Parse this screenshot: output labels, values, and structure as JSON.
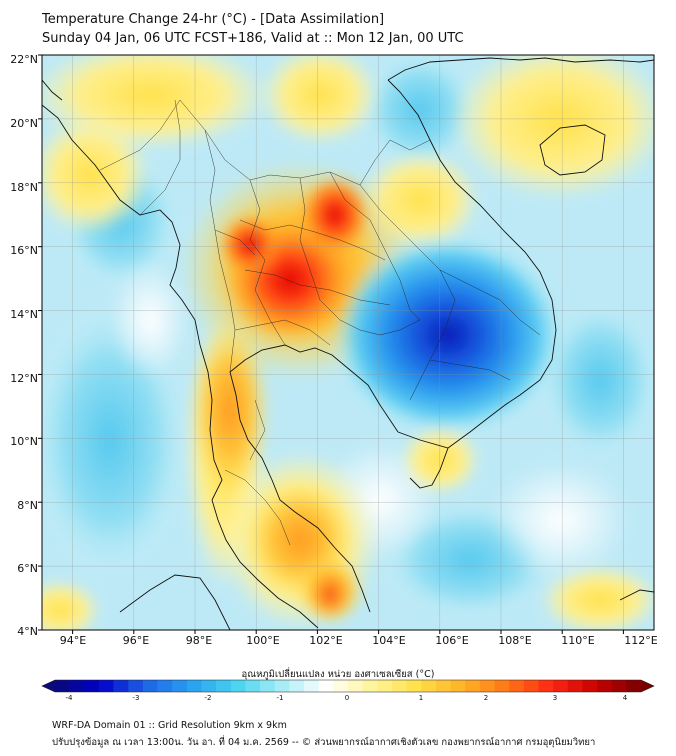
{
  "title": {
    "line1": "Temperature Change 24-hr (°C) - [Data Assimilation]",
    "line2": "Sunday 04 Jan, 06 UTC FCST+186, Valid at :: Mon 12 Jan, 00 UTC"
  },
  "map": {
    "lat_range_deg": [
      4,
      22
    ],
    "lon_range_deg": [
      93,
      113
    ],
    "lat_labels": [
      "22°N",
      "20°N",
      "18°N",
      "16°N",
      "14°N",
      "12°N",
      "10°N",
      "8°N",
      "6°N",
      "4°N"
    ],
    "lon_labels": [
      "94°E",
      "96°E",
      "98°E",
      "100°E",
      "102°E",
      "104°E",
      "106°E",
      "108°E",
      "110°E",
      "112°E"
    ],
    "features": [
      {
        "name": "warm-core-central-thailand",
        "value_c": 3.0,
        "lon": 100.5,
        "lat": 15.0
      },
      {
        "name": "cold-core-cambodia",
        "value_c": -3.5,
        "lon": 105.8,
        "lat": 13.6
      },
      {
        "name": "warm-spot-malaysia",
        "value_c": 2.5,
        "lon": 102.0,
        "lat": 5.3
      }
    ]
  },
  "colorbar": {
    "title": "อุณหภูมิเปลี่ยนแปลง หน่วย องศาเซลเซียส (°C)",
    "min": -4,
    "max": 4,
    "ticks": [
      "-4",
      "-3",
      "-2",
      "-1",
      "0",
      "1",
      "2",
      "3",
      "4"
    ],
    "colors": [
      "#0a0a78",
      "#0000c8",
      "#1e64e6",
      "#28a0f0",
      "#46d2f0",
      "#a5ecf5",
      "#ffffff",
      "#fff5a0",
      "#ffe14b",
      "#ffb428",
      "#ff7814",
      "#ff2814",
      "#c80000",
      "#780000"
    ]
  },
  "footer": {
    "line1": "WRF-DA Domain 01 :: Grid Resolution 9km x 9km",
    "line2": "ปรับปรุงข้อมูล ณ เวลา 13:00น. วัน อา. ที่ 04 ม.ค. 2569 -- © ส่วนพยากรณ์อากาศเชิงตัวเลข กองพยากรณ์อากาศ กรมอุตุนิยมวิทยา"
  }
}
